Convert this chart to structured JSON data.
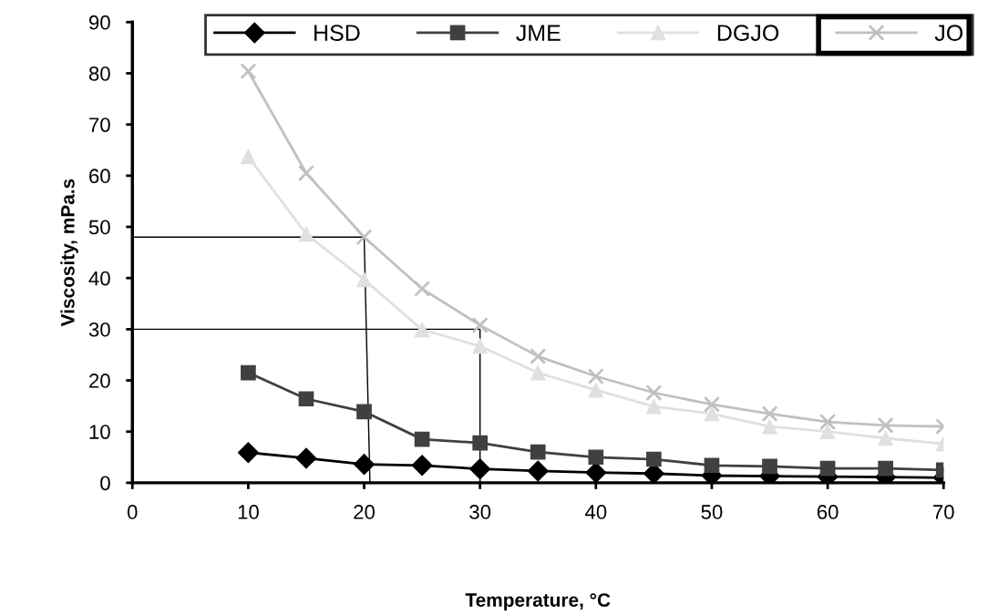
{
  "chart_data": {
    "type": "line",
    "xlabel": "Temperature, °C",
    "ylabel": "Viscosity, mPa.s",
    "x": [
      10,
      15,
      20,
      25,
      30,
      35,
      40,
      45,
      50,
      55,
      60,
      65,
      70
    ],
    "xlim": [
      0,
      70
    ],
    "xticks": [
      0,
      10,
      20,
      30,
      40,
      50,
      60,
      70
    ],
    "ylim": [
      0,
      90
    ],
    "yticks": [
      0,
      10,
      20,
      30,
      40,
      50,
      60,
      70,
      80,
      90
    ],
    "grid": false,
    "legend": "top right",
    "series": [
      {
        "name": "HSD",
        "color": "#000000",
        "marker": "diamond",
        "values": [
          5.9,
          4.8,
          3.6,
          3.4,
          2.7,
          2.3,
          2.0,
          1.8,
          1.4,
          1.3,
          1.2,
          1.1,
          1.0
        ]
      },
      {
        "name": "JME",
        "color": "#404040",
        "marker": "square",
        "values": [
          21.5,
          16.4,
          13.9,
          8.5,
          7.8,
          6.0,
          5.0,
          4.6,
          3.4,
          3.2,
          2.8,
          2.8,
          2.5
        ]
      },
      {
        "name": "DGJO",
        "color": "#e0e0e0",
        "marker": "triangle",
        "values": [
          63.7,
          48.6,
          39.7,
          29.9,
          26.7,
          21.5,
          18.1,
          14.9,
          13.5,
          11.0,
          10.0,
          8.7,
          7.6
        ]
      },
      {
        "name": "JO",
        "color": "#c0c0c0",
        "marker": "cross",
        "values": [
          80.4,
          60.5,
          48.0,
          37.9,
          30.8,
          24.7,
          20.8,
          17.6,
          15.3,
          13.5,
          11.9,
          11.2,
          11.0
        ]
      },
      {
        "color": "#000000",
        "marker": "none",
        "x": [
          0,
          20,
          20.5
        ],
        "values": [
          48,
          48,
          0
        ]
      },
      {
        "color": "#000000",
        "marker": "none",
        "x": [
          0,
          30,
          30
        ],
        "values": [
          30,
          30,
          0
        ]
      }
    ]
  }
}
